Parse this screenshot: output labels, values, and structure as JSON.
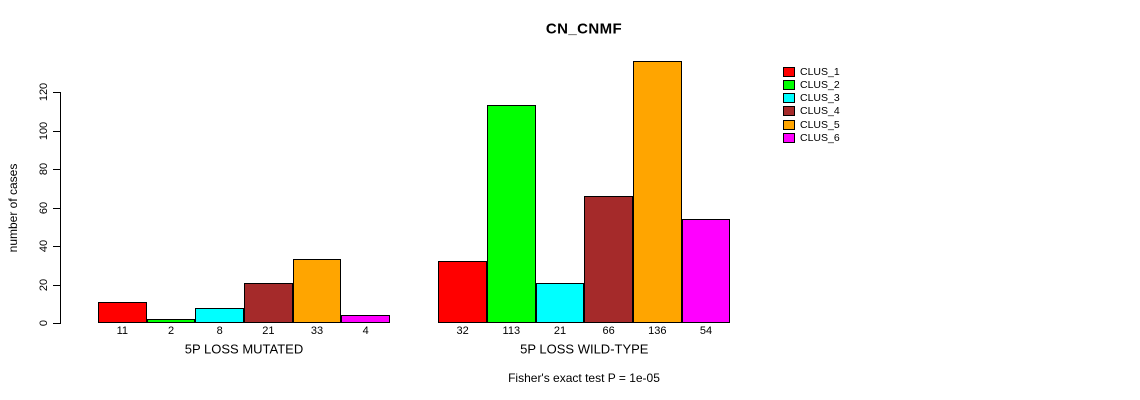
{
  "chart_data": {
    "type": "bar",
    "title": "CN_CNMF",
    "ylabel": "number of cases",
    "xlabel": "",
    "footnote": "Fisher's exact test P = 1e-05",
    "yticks": [
      0,
      20,
      40,
      60,
      80,
      100,
      120
    ],
    "ylim": [
      0,
      136
    ],
    "grid": false,
    "legend_position": "right",
    "series": [
      {
        "name": "CLUS_1",
        "color": "#FF0000"
      },
      {
        "name": "CLUS_2",
        "color": "#00FF00"
      },
      {
        "name": "CLUS_3",
        "color": "#00FFFF"
      },
      {
        "name": "CLUS_4",
        "color": "#A52A2A"
      },
      {
        "name": "CLUS_5",
        "color": "#FFA500"
      },
      {
        "name": "CLUS_6",
        "color": "#FF00FF"
      }
    ],
    "groups": [
      {
        "label": "5P LOSS MUTATED",
        "values": [
          11,
          2,
          8,
          21,
          33,
          4
        ]
      },
      {
        "label": "5P LOSS WILD-TYPE",
        "values": [
          32,
          113,
          21,
          66,
          136,
          54
        ]
      }
    ]
  }
}
